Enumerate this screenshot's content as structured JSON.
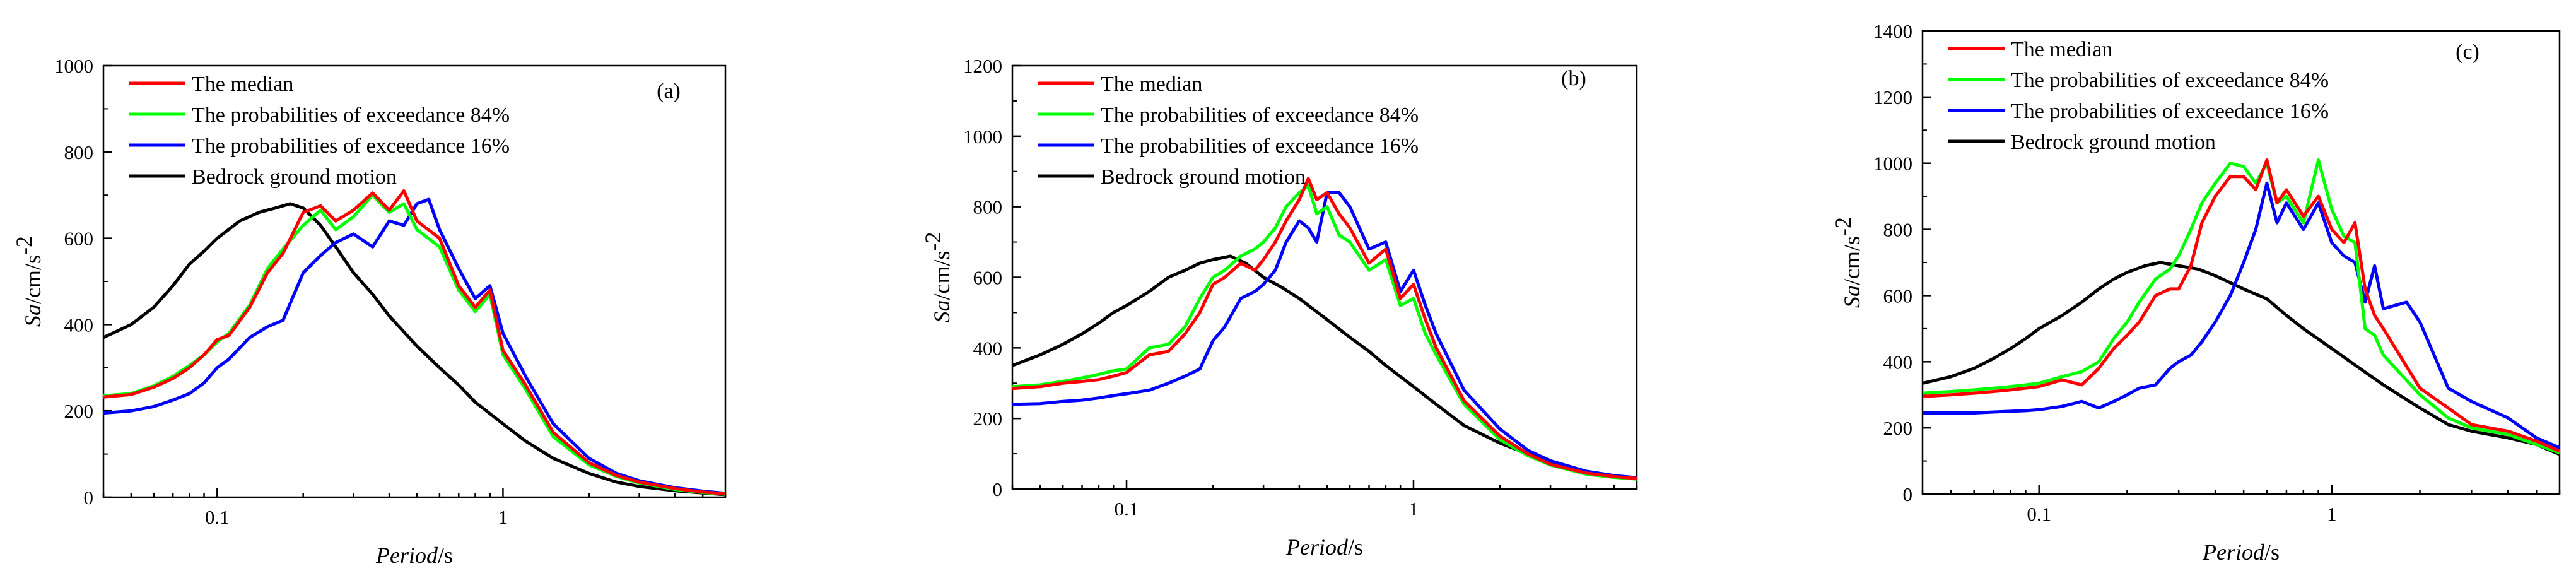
{
  "chart_data": [
    {
      "type": "line",
      "panel": "(a)",
      "xlabel": "Period",
      "xunit": "/s",
      "ylabel": "Sa",
      "yunit": "/cm/s",
      "yunit_exp": "-2",
      "xscale": "log",
      "xlim": [
        0.04,
        6.0
      ],
      "ylim": [
        0,
        1000
      ],
      "yticks": [
        0,
        200,
        400,
        600,
        800,
        1000
      ],
      "xticks": [
        {
          "value": 0.1,
          "label": "0.1"
        },
        {
          "value": 1,
          "label": "1"
        }
      ],
      "legend": "top-left",
      "series": [
        {
          "name": "The median",
          "color": "#ff0000",
          "x": [
            0.04,
            0.05,
            0.06,
            0.07,
            0.08,
            0.09,
            0.1,
            0.11,
            0.13,
            0.15,
            0.17,
            0.2,
            0.23,
            0.26,
            0.3,
            0.35,
            0.4,
            0.45,
            0.5,
            0.6,
            0.7,
            0.8,
            0.9,
            1.0,
            1.2,
            1.5,
            2.0,
            2.5,
            3.0,
            4.0,
            5.0,
            6.0
          ],
          "y": [
            232,
            238,
            255,
            275,
            300,
            330,
            365,
            375,
            440,
            520,
            565,
            660,
            675,
            640,
            665,
            705,
            665,
            710,
            640,
            600,
            490,
            440,
            480,
            340,
            260,
            150,
            80,
            50,
            35,
            20,
            12,
            8
          ]
        },
        {
          "name": "The probabilities of exceedance 84%",
          "color": "#00ff00",
          "x": [
            0.04,
            0.05,
            0.06,
            0.07,
            0.08,
            0.09,
            0.1,
            0.11,
            0.13,
            0.15,
            0.17,
            0.2,
            0.23,
            0.26,
            0.3,
            0.35,
            0.4,
            0.45,
            0.5,
            0.6,
            0.7,
            0.8,
            0.9,
            1.0,
            1.2,
            1.5,
            2.0,
            2.5,
            3.0,
            4.0,
            5.0,
            6.0
          ],
          "y": [
            235,
            240,
            258,
            280,
            305,
            330,
            360,
            380,
            445,
            530,
            575,
            630,
            665,
            620,
            650,
            700,
            660,
            680,
            620,
            580,
            480,
            430,
            470,
            330,
            250,
            140,
            75,
            48,
            33,
            18,
            11,
            7
          ]
        },
        {
          "name": "The probabilities of exceedance 16%",
          "color": "#0000ff",
          "x": [
            0.04,
            0.05,
            0.06,
            0.07,
            0.08,
            0.09,
            0.1,
            0.11,
            0.13,
            0.15,
            0.17,
            0.2,
            0.23,
            0.26,
            0.3,
            0.35,
            0.4,
            0.45,
            0.5,
            0.55,
            0.6,
            0.7,
            0.8,
            0.9,
            1.0,
            1.2,
            1.5,
            2.0,
            2.5,
            3.0,
            4.0,
            5.0,
            6.0
          ],
          "y": [
            195,
            200,
            210,
            225,
            240,
            265,
            300,
            320,
            370,
            395,
            410,
            520,
            560,
            590,
            610,
            580,
            640,
            630,
            680,
            690,
            620,
            530,
            460,
            490,
            380,
            280,
            170,
            90,
            55,
            38,
            22,
            14,
            9
          ]
        },
        {
          "name": "Bedrock ground motion",
          "color": "#000000",
          "x": [
            0.04,
            0.05,
            0.06,
            0.07,
            0.08,
            0.09,
            0.1,
            0.12,
            0.14,
            0.16,
            0.18,
            0.2,
            0.23,
            0.26,
            0.3,
            0.35,
            0.4,
            0.5,
            0.6,
            0.7,
            0.8,
            1.0,
            1.2,
            1.5,
            2.0,
            2.5,
            3.0,
            4.0,
            5.0,
            6.0
          ],
          "y": [
            370,
            400,
            440,
            490,
            540,
            570,
            600,
            640,
            660,
            670,
            680,
            670,
            630,
            580,
            520,
            470,
            420,
            350,
            300,
            260,
            220,
            170,
            130,
            90,
            55,
            35,
            25,
            15,
            10,
            6
          ]
        }
      ]
    },
    {
      "type": "line",
      "panel": "(b)",
      "xlabel": "Period",
      "xunit": "/s",
      "ylabel": "Sa",
      "yunit": "/cm/s",
      "yunit_exp": "-2",
      "xscale": "log",
      "xlim": [
        0.04,
        6.0
      ],
      "ylim": [
        0,
        1200
      ],
      "yticks": [
        0,
        200,
        400,
        600,
        800,
        1000,
        1200
      ],
      "xticks": [
        {
          "value": 0.1,
          "label": "0.1"
        },
        {
          "value": 1,
          "label": "1"
        }
      ],
      "legend": "top-left",
      "series": [
        {
          "name": "The median",
          "color": "#ff0000",
          "x": [
            0.04,
            0.05,
            0.06,
            0.07,
            0.08,
            0.09,
            0.1,
            0.12,
            0.14,
            0.16,
            0.18,
            0.2,
            0.22,
            0.25,
            0.28,
            0.3,
            0.33,
            0.36,
            0.4,
            0.43,
            0.46,
            0.5,
            0.55,
            0.6,
            0.7,
            0.8,
            0.9,
            1.0,
            1.1,
            1.2,
            1.5,
            2.0,
            2.5,
            3.0,
            4.0,
            5.0,
            6.0
          ],
          "y": [
            285,
            290,
            300,
            305,
            310,
            320,
            330,
            380,
            390,
            440,
            500,
            580,
            600,
            640,
            620,
            650,
            700,
            760,
            820,
            880,
            820,
            840,
            780,
            740,
            640,
            680,
            540,
            580,
            480,
            400,
            250,
            150,
            100,
            70,
            45,
            35,
            30
          ]
        },
        {
          "name": "The probabilities of exceedance 84%",
          "color": "#00ff00",
          "x": [
            0.04,
            0.05,
            0.06,
            0.07,
            0.08,
            0.09,
            0.1,
            0.12,
            0.14,
            0.16,
            0.18,
            0.2,
            0.22,
            0.25,
            0.28,
            0.3,
            0.33,
            0.36,
            0.4,
            0.43,
            0.46,
            0.5,
            0.55,
            0.6,
            0.7,
            0.8,
            0.9,
            1.0,
            1.1,
            1.2,
            1.5,
            2.0,
            2.5,
            3.0,
            4.0,
            5.0,
            6.0
          ],
          "y": [
            290,
            295,
            305,
            315,
            325,
            335,
            340,
            400,
            410,
            460,
            540,
            600,
            620,
            660,
            680,
            700,
            740,
            800,
            840,
            860,
            780,
            800,
            720,
            700,
            620,
            650,
            520,
            540,
            440,
            380,
            240,
            140,
            95,
            68,
            42,
            33,
            28
          ]
        },
        {
          "name": "The probabilities of exceedance 16%",
          "color": "#0000ff",
          "x": [
            0.04,
            0.05,
            0.06,
            0.07,
            0.08,
            0.09,
            0.1,
            0.12,
            0.14,
            0.16,
            0.18,
            0.2,
            0.22,
            0.25,
            0.28,
            0.3,
            0.33,
            0.36,
            0.4,
            0.43,
            0.46,
            0.5,
            0.55,
            0.6,
            0.7,
            0.8,
            0.9,
            1.0,
            1.1,
            1.2,
            1.5,
            2.0,
            2.5,
            3.0,
            4.0,
            5.0,
            6.0
          ],
          "y": [
            240,
            242,
            248,
            252,
            258,
            265,
            270,
            280,
            300,
            320,
            340,
            420,
            460,
            540,
            560,
            580,
            620,
            700,
            760,
            740,
            700,
            840,
            840,
            800,
            680,
            700,
            560,
            620,
            520,
            440,
            280,
            170,
            110,
            80,
            50,
            38,
            32
          ]
        },
        {
          "name": "Bedrock ground motion",
          "color": "#000000",
          "x": [
            0.04,
            0.05,
            0.06,
            0.07,
            0.08,
            0.09,
            0.1,
            0.12,
            0.14,
            0.16,
            0.18,
            0.2,
            0.23,
            0.26,
            0.3,
            0.35,
            0.4,
            0.5,
            0.6,
            0.7,
            0.8,
            1.0,
            1.2,
            1.5,
            2.0,
            2.5,
            3.0,
            4.0,
            5.0,
            6.0
          ],
          "y": [
            350,
            380,
            410,
            440,
            470,
            500,
            520,
            560,
            600,
            620,
            640,
            650,
            660,
            640,
            600,
            570,
            540,
            480,
            430,
            390,
            350,
            290,
            240,
            180,
            130,
            100,
            75,
            50,
            38,
            30
          ]
        }
      ]
    },
    {
      "type": "line",
      "panel": "(c)",
      "xlabel": "Period",
      "xunit": "/s",
      "ylabel": "Sa",
      "yunit": "/cm/s",
      "yunit_exp": "-2",
      "xscale": "log",
      "xlim": [
        0.04,
        6.0
      ],
      "ylim": [
        0,
        1400
      ],
      "yticks": [
        0,
        200,
        400,
        600,
        800,
        1000,
        1200,
        1400
      ],
      "xticks": [
        {
          "value": 0.1,
          "label": "0.1"
        },
        {
          "value": 1,
          "label": "1"
        }
      ],
      "legend": "top-left",
      "series": [
        {
          "name": "The median",
          "color": "#ff0000",
          "x": [
            0.04,
            0.05,
            0.06,
            0.07,
            0.08,
            0.09,
            0.1,
            0.12,
            0.14,
            0.16,
            0.18,
            0.2,
            0.22,
            0.25,
            0.28,
            0.3,
            0.33,
            0.36,
            0.4,
            0.45,
            0.5,
            0.55,
            0.6,
            0.65,
            0.7,
            0.8,
            0.9,
            1.0,
            1.1,
            1.2,
            1.3,
            1.4,
            1.5,
            2.0,
            2.5,
            3.0,
            4.0,
            5.0,
            6.0
          ],
          "y": [
            295,
            300,
            305,
            310,
            315,
            320,
            325,
            345,
            330,
            380,
            440,
            480,
            520,
            600,
            620,
            620,
            690,
            820,
            900,
            960,
            960,
            920,
            1010,
            880,
            920,
            840,
            900,
            800,
            760,
            820,
            620,
            540,
            500,
            320,
            260,
            210,
            190,
            160,
            130
          ]
        },
        {
          "name": "The probabilities of exceedance 84%",
          "color": "#00ff00",
          "x": [
            0.04,
            0.05,
            0.06,
            0.07,
            0.08,
            0.09,
            0.1,
            0.12,
            0.14,
            0.16,
            0.18,
            0.2,
            0.22,
            0.25,
            0.28,
            0.3,
            0.33,
            0.36,
            0.4,
            0.45,
            0.5,
            0.55,
            0.6,
            0.65,
            0.7,
            0.8,
            0.9,
            1.0,
            1.1,
            1.2,
            1.3,
            1.4,
            1.5,
            2.0,
            2.5,
            3.0,
            4.0,
            5.0,
            6.0
          ],
          "y": [
            305,
            310,
            315,
            320,
            325,
            330,
            335,
            355,
            370,
            400,
            470,
            520,
            580,
            650,
            680,
            720,
            800,
            880,
            940,
            1000,
            990,
            940,
            1000,
            880,
            900,
            820,
            1010,
            860,
            780,
            760,
            500,
            480,
            420,
            300,
            230,
            200,
            180,
            150,
            125
          ]
        },
        {
          "name": "The probabilities of exceedance 16%",
          "color": "#0000ff",
          "x": [
            0.04,
            0.05,
            0.06,
            0.07,
            0.08,
            0.09,
            0.1,
            0.12,
            0.14,
            0.16,
            0.18,
            0.2,
            0.22,
            0.25,
            0.28,
            0.3,
            0.33,
            0.36,
            0.4,
            0.45,
            0.5,
            0.55,
            0.6,
            0.65,
            0.7,
            0.8,
            0.9,
            1.0,
            1.1,
            1.2,
            1.3,
            1.4,
            1.5,
            1.8,
            2.0,
            2.5,
            3.0,
            4.0,
            5.0,
            6.0
          ],
          "y": [
            245,
            245,
            245,
            248,
            250,
            252,
            255,
            265,
            280,
            260,
            280,
            300,
            320,
            330,
            380,
            400,
            420,
            460,
            520,
            600,
            700,
            800,
            940,
            820,
            880,
            800,
            880,
            760,
            720,
            700,
            580,
            690,
            560,
            580,
            520,
            320,
            280,
            230,
            170,
            140
          ]
        },
        {
          "name": "Bedrock ground motion",
          "color": "#000000",
          "x": [
            0.04,
            0.05,
            0.06,
            0.07,
            0.08,
            0.09,
            0.1,
            0.12,
            0.14,
            0.16,
            0.18,
            0.2,
            0.23,
            0.26,
            0.3,
            0.35,
            0.4,
            0.5,
            0.6,
            0.7,
            0.8,
            1.0,
            1.2,
            1.5,
            2.0,
            2.5,
            3.0,
            4.0,
            5.0,
            6.0
          ],
          "y": [
            335,
            355,
            380,
            410,
            440,
            470,
            500,
            540,
            580,
            620,
            650,
            670,
            690,
            700,
            690,
            680,
            660,
            620,
            590,
            540,
            500,
            440,
            390,
            330,
            260,
            210,
            190,
            170,
            150,
            120
          ]
        }
      ]
    }
  ]
}
